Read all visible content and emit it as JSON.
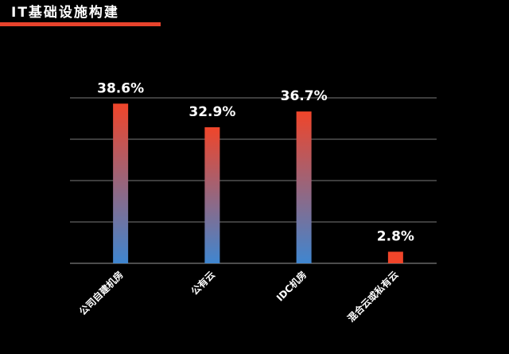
{
  "title": "IT基础设施构建",
  "colors": {
    "accent": "#e8432c",
    "bar_top": "#f0452a",
    "bar_bottom": "#3f86d0",
    "grid": "#7a7a7a",
    "text": "#ffffff"
  },
  "chart_data": {
    "type": "bar",
    "title": "IT基础设施构建",
    "xlabel": "",
    "ylabel": "",
    "categories": [
      "公司自建机房",
      "公有云",
      "IDC机房",
      "混合云或私有云"
    ],
    "values": [
      38.6,
      32.9,
      36.7,
      2.8
    ],
    "data_labels": [
      "38.6%",
      "32.9%",
      "36.7%",
      "2.8%"
    ],
    "ylim": [
      0,
      40
    ],
    "grid": true,
    "gridline_count": 5,
    "legend": "none"
  }
}
